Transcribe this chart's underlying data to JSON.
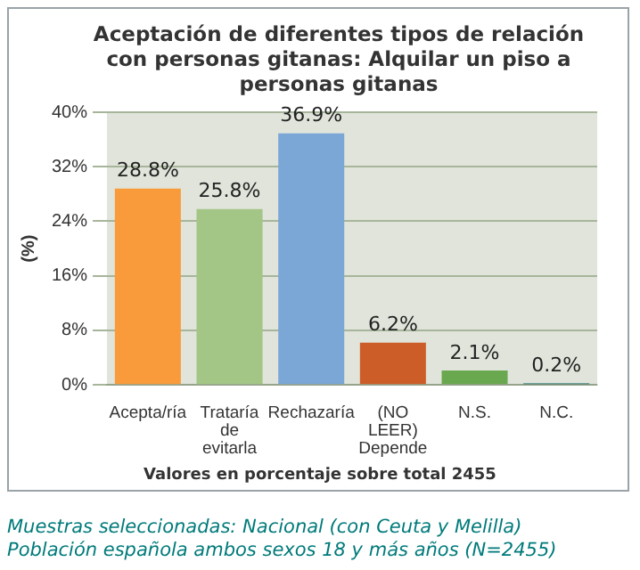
{
  "chart_data": {
    "type": "bar",
    "title": "Aceptación de diferentes tipos de relación con personas gitanas: Alquilar un piso a personas gitanas",
    "ylabel": "(%)",
    "xlabel": "Valores en porcentaje sobre total 2455",
    "categories": [
      "Acepta/ría",
      "Trataría de evitarla",
      "Rechazaría",
      "(NO LEER) Depende",
      "N.S.",
      "N.C."
    ],
    "values": [
      28.8,
      25.8,
      36.9,
      6.2,
      2.1,
      0.2
    ],
    "colors": [
      "#f99b3a",
      "#a3c585",
      "#7ba7d6",
      "#cc5d28",
      "#6aa84f",
      "#006060"
    ],
    "ylim": [
      0,
      40
    ],
    "yticks": [
      {
        "value": 0,
        "label": "0%"
      },
      {
        "value": 8,
        "label": "8%"
      },
      {
        "value": 16,
        "label": "16%"
      },
      {
        "value": 24,
        "label": "24%"
      },
      {
        "value": 32,
        "label": "32%"
      },
      {
        "value": 40,
        "label": "40%"
      }
    ],
    "value_labels": [
      "28.8%",
      "25.8%",
      "36.9%",
      "6.2%",
      "2.1%",
      "0.2%"
    ],
    "grid": "y",
    "legend": false,
    "annotations": [
      "Muestras seleccionadas: Nacional (con Ceuta y Melilla)",
      "Población española ambos sexos 18 y más años (N=2455)"
    ]
  }
}
